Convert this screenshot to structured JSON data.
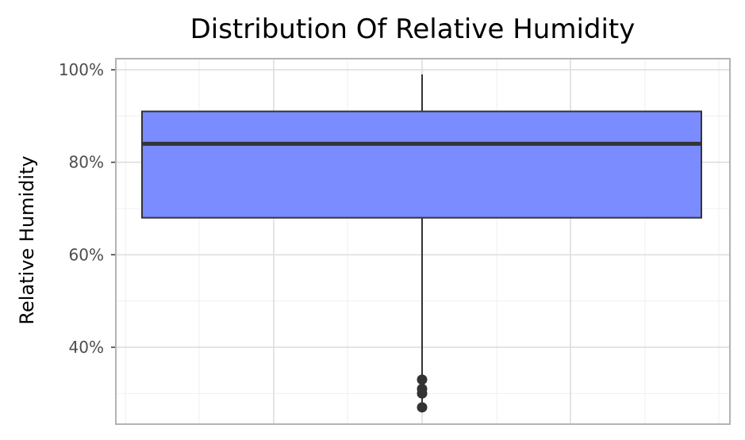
{
  "chart_data": {
    "type": "box",
    "title": "Distribution Of Relative Humidity",
    "xlabel": "",
    "ylabel": "Relative Humidity",
    "ylim": [
      24,
      102
    ],
    "y_ticks": [
      40,
      60,
      80,
      100
    ],
    "y_tick_labels": [
      "40%",
      "60%",
      "80%",
      "100%"
    ],
    "y_minor_ticks": [
      30,
      50,
      70,
      90
    ],
    "grid": true,
    "series": [
      {
        "stats": {
          "whisker_low": 68,
          "q1": 68,
          "median": 84,
          "q3": 91,
          "whisker_high": 99
        },
        "outliers": [
          33,
          31,
          30,
          27
        ]
      }
    ],
    "colors": {
      "box_fill": "#7a8cff",
      "box_stroke": "#333333",
      "median": "#333333",
      "whisker": "#333333",
      "outlier": "#333333",
      "grid_major": "#dcdcdc",
      "grid_minor": "#efefef",
      "panel_border": "#b3b3b3"
    }
  }
}
